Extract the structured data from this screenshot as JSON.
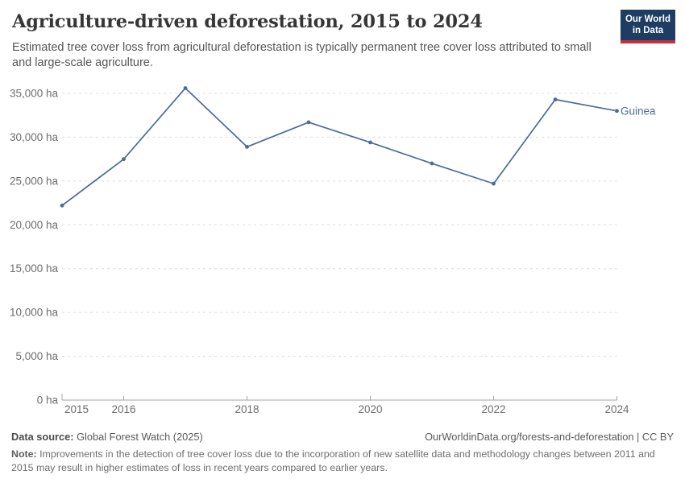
{
  "header": {
    "title": "Agriculture-driven deforestation, 2015 to 2024",
    "subtitle": "Estimated tree cover loss from agricultural deforestation is typically permanent tree cover loss attributed to small and large-scale agriculture.",
    "logo": {
      "line1": "Our World",
      "line2": "in Data",
      "bg_color": "#1d3d63",
      "accent_color": "#c9303e"
    }
  },
  "chart_data": {
    "type": "line",
    "title": "Agriculture-driven deforestation, 2015 to 2024",
    "x": [
      2015,
      2016,
      2017,
      2018,
      2019,
      2020,
      2021,
      2022,
      2023,
      2024
    ],
    "series": [
      {
        "name": "Guinea",
        "color": "#4c6a9c",
        "values": [
          22200,
          27500,
          35600,
          28900,
          31700,
          29400,
          27000,
          24700,
          34300,
          33000
        ]
      }
    ],
    "xlabel": "",
    "ylabel": "",
    "unit": "ha",
    "xlim": [
      2015,
      2024
    ],
    "ylim": [
      0,
      35000
    ],
    "y_ticks": [
      0,
      5000,
      10000,
      15000,
      20000,
      25000,
      30000,
      35000
    ],
    "y_tick_labels": [
      "0 ha",
      "5,000 ha",
      "10,000 ha",
      "15,000 ha",
      "20,000 ha",
      "25,000 ha",
      "30,000 ha",
      "35,000 ha"
    ],
    "x_ticks": [
      2015,
      2016,
      2018,
      2020,
      2022,
      2024
    ],
    "x_tick_labels": [
      "2015",
      "2016",
      "2018",
      "2020",
      "2022",
      "2024"
    ],
    "grid": "horizontal dashed",
    "legend_position": "end-of-line label"
  },
  "colors": {
    "line": "#4c6a9c",
    "grid": "#dcdcdc",
    "axis": "#a3a3a3",
    "tick_label": "#6e6e6e"
  },
  "footer": {
    "datasource_label": "Data source:",
    "datasource_value": " Global Forest Watch (2025)",
    "attribution": "OurWorldinData.org/forests-and-deforestation | CC BY",
    "note_label": "Note:",
    "note_value": " Improvements in the detection of tree cover loss due to the incorporation of new satellite data and methodology changes between 2011 and 2015 may result in higher estimates of loss in recent years compared to earlier years."
  }
}
